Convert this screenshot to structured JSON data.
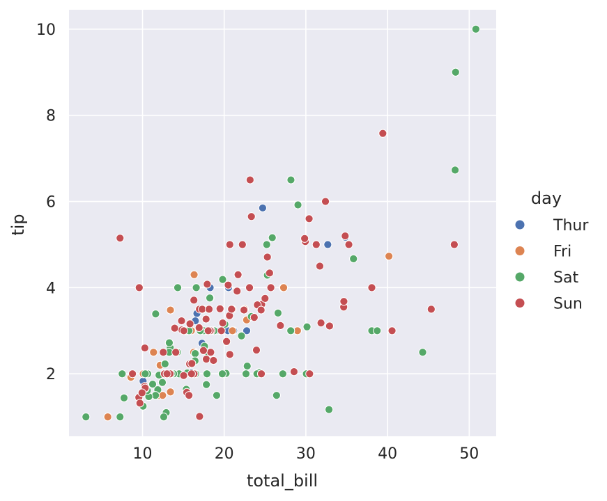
{
  "chart_data": {
    "type": "scatter",
    "xlabel": "total_bill",
    "ylabel": "tip",
    "xlim": [
      1,
      53.3
    ],
    "ylim": [
      0.55,
      10.45
    ],
    "xticks": [
      10,
      20,
      30,
      40,
      50
    ],
    "yticks": [
      2,
      4,
      6,
      8,
      10
    ],
    "grid": true,
    "legend_title": "day",
    "legend_position": "right",
    "series": [
      {
        "name": "Thur",
        "color": "#4c72b0",
        "points": [
          [
            27.2,
            4.0
          ],
          [
            22.76,
            3.0
          ],
          [
            17.29,
            2.71
          ],
          [
            19.44,
            3.0
          ],
          [
            16.66,
            3.4
          ],
          [
            10.07,
            1.83
          ],
          [
            32.68,
            5.0
          ],
          [
            15.98,
            2.03
          ],
          [
            34.83,
            5.17
          ],
          [
            13.03,
            2.0
          ],
          [
            18.28,
            4.0
          ],
          [
            24.71,
            5.85
          ],
          [
            21.16,
            3.0
          ],
          [
            28.97,
            3.0
          ],
          [
            22.49,
            3.5
          ],
          [
            5.75,
            1.0
          ],
          [
            16.32,
            4.3
          ],
          [
            22.75,
            3.25
          ],
          [
            40.17,
            4.73
          ],
          [
            27.28,
            4.0
          ],
          [
            12.03,
            1.5
          ],
          [
            21.01,
            3.0
          ],
          [
            12.46,
            1.5
          ],
          [
            11.35,
            2.5
          ],
          [
            15.38,
            3.0
          ],
          [
            12.16,
            2.2
          ],
          [
            13.42,
            3.48
          ],
          [
            8.58,
            1.92
          ],
          [
            15.98,
            3.0
          ],
          [
            13.42,
            1.58
          ],
          [
            16.27,
            2.5
          ],
          [
            10.09,
            2.0
          ],
          [
            20.45,
            3.0
          ],
          [
            13.28,
            2.72
          ],
          [
            22.12,
            2.88
          ],
          [
            24.01,
            2.0
          ],
          [
            15.69,
            3.0
          ],
          [
            11.61,
            3.39
          ],
          [
            10.77,
            1.47
          ],
          [
            15.53,
            3.0
          ],
          [
            10.07,
            1.25
          ],
          [
            12.6,
            1.0
          ],
          [
            32.83,
            1.17
          ],
          [
            35.83,
            4.67
          ],
          [
            29.03,
            5.92
          ],
          [
            27.18,
            2.0
          ],
          [
            22.67,
            2.0
          ],
          [
            17.82,
            1.75
          ],
          [
            18.78,
            3.0
          ],
          [
            12.74,
            2.01
          ],
          [
            13.0,
            2.0
          ],
          [
            16.4,
            2.5
          ],
          [
            20.53,
            4.0
          ],
          [
            16.47,
            3.23
          ],
          [
            26.59,
            3.41
          ],
          [
            38.73,
            3.0
          ],
          [
            24.27,
            2.03
          ],
          [
            12.76,
            2.23
          ],
          [
            30.06,
            2.0
          ],
          [
            25.89,
            5.16
          ],
          [
            48.33,
            9.0
          ],
          [
            13.27,
            2.5
          ],
          [
            28.17,
            6.5
          ],
          [
            12.9,
            1.1
          ],
          [
            28.15,
            3.0
          ],
          [
            11.59,
            1.5
          ],
          [
            7.74,
            1.44
          ],
          [
            30.14,
            3.09
          ],
          [
            12.16,
            2.2
          ],
          [
            13.42,
            3.48
          ],
          [
            8.58,
            1.92
          ],
          [
            15.98,
            3.0
          ],
          [
            13.42,
            1.58
          ],
          [
            16.27,
            2.5
          ],
          [
            10.09,
            2.0
          ],
          [
            20.45,
            3.0
          ],
          [
            13.28,
            2.72
          ],
          [
            22.12,
            2.88
          ]
        ]
      },
      {
        "name": "Fri",
        "color": "#dd8452",
        "points": [
          [
            28.97,
            3.0
          ],
          [
            22.49,
            3.5
          ],
          [
            5.75,
            1.0
          ],
          [
            16.32,
            4.3
          ],
          [
            22.75,
            3.25
          ],
          [
            40.17,
            4.73
          ],
          [
            27.28,
            4.0
          ],
          [
            12.03,
            1.5
          ],
          [
            21.01,
            3.0
          ],
          [
            12.46,
            1.5
          ],
          [
            11.35,
            2.5
          ],
          [
            15.38,
            3.0
          ],
          [
            12.16,
            2.2
          ],
          [
            13.42,
            3.48
          ],
          [
            8.58,
            1.92
          ],
          [
            15.98,
            3.0
          ],
          [
            13.42,
            1.58
          ],
          [
            16.27,
            2.5
          ],
          [
            10.09,
            2.0
          ]
        ]
      },
      {
        "name": "Sat",
        "color": "#55a868",
        "points": [
          [
            50.81,
            10.0
          ],
          [
            48.27,
            6.73
          ],
          [
            48.33,
            9.0
          ],
          [
            39.42,
            7.58
          ],
          [
            44.3,
            2.5
          ],
          [
            38.07,
            3.0
          ],
          [
            38.73,
            3.0
          ],
          [
            35.83,
            4.67
          ],
          [
            32.83,
            1.17
          ],
          [
            31.27,
            5.0
          ],
          [
            30.06,
            2.0
          ],
          [
            30.14,
            3.09
          ],
          [
            29.03,
            5.92
          ],
          [
            28.17,
            6.5
          ],
          [
            28.15,
            3.0
          ],
          [
            27.18,
            2.0
          ],
          [
            26.88,
            3.12
          ],
          [
            26.59,
            3.41
          ],
          [
            26.41,
            1.5
          ],
          [
            25.89,
            5.16
          ],
          [
            25.29,
            4.29
          ],
          [
            25.21,
            5.0
          ],
          [
            24.59,
            3.61
          ],
          [
            24.27,
            2.03
          ],
          [
            24.01,
            2.0
          ],
          [
            23.95,
            2.55
          ],
          [
            23.33,
            3.33
          ],
          [
            22.82,
            2.18
          ],
          [
            22.67,
            2.0
          ],
          [
            22.42,
            3.48
          ],
          [
            22.12,
            2.88
          ],
          [
            21.58,
            3.92
          ],
          [
            21.7,
            4.3
          ],
          [
            21.01,
            3.5
          ],
          [
            20.69,
            2.45
          ],
          [
            20.69,
            5.0
          ],
          [
            20.65,
            3.35
          ],
          [
            20.49,
            4.06
          ],
          [
            20.29,
            2.75
          ],
          [
            20.23,
            2.01
          ],
          [
            20.08,
            3.15
          ],
          [
            19.81,
            4.19
          ],
          [
            19.77,
            2.0
          ],
          [
            19.65,
            3.0
          ],
          [
            19.49,
            3.51
          ],
          [
            19.08,
            1.5
          ],
          [
            18.78,
            3.0
          ],
          [
            18.29,
            3.76
          ],
          [
            18.24,
            3.76
          ],
          [
            18.15,
            3.5
          ],
          [
            18.04,
            2.5
          ],
          [
            17.92,
            4.08
          ],
          [
            17.82,
            1.75
          ],
          [
            17.78,
            3.27
          ],
          [
            17.59,
            2.64
          ],
          [
            17.51,
            3.0
          ],
          [
            17.47,
            3.5
          ],
          [
            17.31,
            3.5
          ],
          [
            17.07,
            3.0
          ],
          [
            16.58,
            4.0
          ],
          [
            16.49,
            2.0
          ],
          [
            16.45,
            2.47
          ],
          [
            16.43,
            2.3
          ],
          [
            16.21,
            2.0
          ],
          [
            16.04,
            2.24
          ],
          [
            15.81,
            3.16
          ],
          [
            15.69,
            1.5
          ],
          [
            15.69,
            3.0
          ],
          [
            15.48,
            2.02
          ],
          [
            15.36,
            1.64
          ],
          [
            15.06,
            3.0
          ],
          [
            14.48,
            2.0
          ],
          [
            14.26,
            2.5
          ],
          [
            14.07,
            2.5
          ],
          [
            13.94,
            3.06
          ],
          [
            13.81,
            2.0
          ],
          [
            13.51,
            2.0
          ],
          [
            13.39,
            2.61
          ],
          [
            13.28,
            2.72
          ],
          [
            13.27,
            2.5
          ],
          [
            13.13,
            2.0
          ],
          [
            13.0,
            2.0
          ],
          [
            12.9,
            1.1
          ],
          [
            12.76,
            2.23
          ],
          [
            12.74,
            2.01
          ],
          [
            12.43,
            1.8
          ],
          [
            12.02,
            1.97
          ],
          [
            11.87,
            1.63
          ],
          [
            11.61,
            3.39
          ],
          [
            11.59,
            1.5
          ],
          [
            11.24,
            1.76
          ],
          [
            10.77,
            1.47
          ],
          [
            10.63,
            2.0
          ],
          [
            10.59,
            1.61
          ],
          [
            10.34,
            2.0
          ],
          [
            10.29,
            2.6
          ],
          [
            10.07,
            1.25
          ],
          [
            9.94,
            1.56
          ],
          [
            9.68,
            1.32
          ],
          [
            9.55,
            1.45
          ],
          [
            7.74,
            1.44
          ],
          [
            7.51,
            2.0
          ],
          [
            7.25,
            1.0
          ],
          [
            3.07,
            1.0
          ],
          [
            7.25,
            5.15
          ],
          [
            14.31,
            4.0
          ],
          [
            12.6,
            1.0
          ],
          [
            17.89,
            2.0
          ]
        ]
      },
      {
        "name": "Sun",
        "color": "#c44e52",
        "points": [
          [
            16.99,
            1.01
          ],
          [
            10.34,
            1.66
          ],
          [
            21.01,
            3.5
          ],
          [
            23.68,
            3.31
          ],
          [
            24.59,
            3.61
          ],
          [
            25.29,
            4.71
          ],
          [
            8.77,
            2.0
          ],
          [
            26.88,
            3.12
          ],
          [
            15.04,
            1.96
          ],
          [
            14.78,
            3.23
          ],
          [
            10.27,
            1.71
          ],
          [
            35.26,
            5.0
          ],
          [
            15.42,
            1.57
          ],
          [
            18.43,
            3.0
          ],
          [
            14.83,
            3.02
          ],
          [
            21.58,
            3.92
          ],
          [
            10.33,
            1.67
          ],
          [
            16.29,
            3.71
          ],
          [
            16.97,
            3.5
          ],
          [
            20.65,
            3.35
          ],
          [
            17.92,
            4.08
          ],
          [
            20.29,
            2.75
          ],
          [
            15.77,
            2.23
          ],
          [
            39.42,
            7.58
          ],
          [
            19.82,
            3.18
          ],
          [
            17.81,
            2.34
          ],
          [
            13.37,
            2.0
          ],
          [
            12.69,
            2.0
          ],
          [
            21.7,
            4.3
          ],
          [
            19.65,
            3.0
          ],
          [
            9.55,
            1.45
          ],
          [
            18.35,
            2.5
          ],
          [
            15.06,
            3.0
          ],
          [
            20.69,
            2.45
          ],
          [
            17.78,
            3.27
          ],
          [
            24.06,
            3.6
          ],
          [
            16.31,
            2.0
          ],
          [
            16.93,
            3.07
          ],
          [
            18.69,
            2.31
          ],
          [
            31.27,
            5.0
          ],
          [
            16.04,
            2.24
          ],
          [
            17.46,
            2.54
          ],
          [
            13.94,
            3.06
          ],
          [
            9.68,
            1.32
          ],
          [
            30.4,
            5.6
          ],
          [
            18.29,
            3.0
          ],
          [
            22.23,
            5.0
          ],
          [
            32.4,
            6.0
          ],
          [
            28.55,
            2.05
          ],
          [
            18.04,
            3.0
          ],
          [
            12.54,
            2.5
          ],
          [
            10.29,
            2.6
          ],
          [
            34.81,
            5.2
          ],
          [
            9.94,
            1.56
          ],
          [
            25.56,
            4.34
          ],
          [
            19.49,
            3.51
          ],
          [
            38.07,
            4.0
          ],
          [
            23.95,
            2.55
          ],
          [
            25.71,
            4.0
          ],
          [
            17.31,
            3.5
          ],
          [
            29.93,
            5.07
          ],
          [
            14.07,
            2.5
          ],
          [
            20.49,
            4.06
          ],
          [
            48.17,
            5.0
          ],
          [
            40.55,
            3.0
          ],
          [
            29.85,
            5.14
          ],
          [
            32.9,
            3.11
          ],
          [
            34.63,
            3.55
          ],
          [
            34.65,
            3.68
          ],
          [
            23.33,
            5.65
          ],
          [
            45.35,
            3.5
          ],
          [
            23.17,
            6.5
          ],
          [
            40.55,
            3.0
          ],
          [
            20.69,
            5.0
          ],
          [
            20.9,
            3.5
          ],
          [
            30.46,
            2.0
          ],
          [
            18.15,
            3.5
          ],
          [
            23.1,
            4.0
          ],
          [
            15.69,
            1.5
          ],
          [
            9.6,
            4.0
          ],
          [
            31.85,
            3.18
          ],
          [
            31.71,
            4.5
          ],
          [
            24.52,
            3.48
          ],
          [
            25.0,
            3.75
          ],
          [
            22.42,
            3.48
          ],
          [
            15.81,
            3.16
          ],
          [
            7.25,
            5.15
          ],
          [
            16.0,
            2.0
          ],
          [
            13.0,
            2.0
          ],
          [
            24.55,
            2.0
          ]
        ]
      }
    ]
  }
}
